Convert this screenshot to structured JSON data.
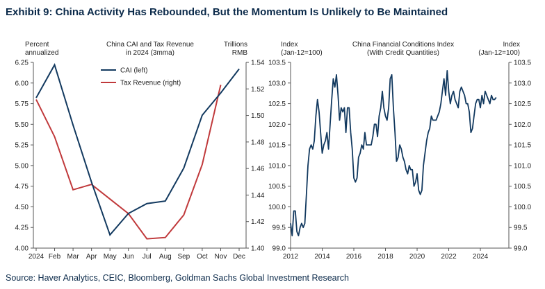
{
  "title": "Exhibit 9: China Activity Has Rebounded, But the Momentum Is Unlikely to Be Maintained",
  "source": "Source: Haver Analytics, CEIC, Bloomberg, Goldman Sachs Global Investment Research",
  "colors": {
    "cai": "#12395f",
    "tax": "#c0393b",
    "fci": "#12395f"
  },
  "chart_data": [
    {
      "type": "line",
      "title": "China CAI and Tax Revenue",
      "subtitle": "in 2024 (3mma)",
      "ylabel_left": [
        "Percent",
        "annualized"
      ],
      "ylabel_right": [
        "Trillions",
        "RMB"
      ],
      "categories": [
        "2024",
        "Feb",
        "Mar",
        "Apr",
        "May",
        "Jun",
        "Jul",
        "Aug",
        "Sep",
        "Oct",
        "Nov",
        "Dec"
      ],
      "ylim_left": [
        4.0,
        6.25
      ],
      "ylim_right": [
        1.4,
        1.54
      ],
      "yticks_left": [
        "4.00",
        "4.25",
        "4.50",
        "4.75",
        "5.00",
        "5.25",
        "5.50",
        "5.75",
        "6.00",
        "6.25"
      ],
      "yticks_right": [
        "1.40",
        "1.42",
        "1.44",
        "1.46",
        "1.48",
        "1.50",
        "1.52",
        "1.54"
      ],
      "legend_position": "top-left",
      "series": [
        {
          "name": "CAI (left)",
          "axis": "left",
          "values": [
            5.82,
            6.22,
            5.49,
            4.8,
            4.16,
            4.42,
            4.54,
            4.57,
            4.97,
            5.61,
            5.88,
            6.17
          ]
        },
        {
          "name": "Tax Revenue (right)",
          "axis": "right",
          "values": [
            1.512,
            1.484,
            1.444,
            1.448,
            1.437,
            1.426,
            1.407,
            1.408,
            1.425,
            1.463,
            1.523,
            null
          ]
        }
      ]
    },
    {
      "type": "line",
      "title": "China Financial Conditions Index",
      "subtitle": "(With Credit Quantities)",
      "ylabel_left": [
        "Index",
        "(Jan-12=100)"
      ],
      "ylabel_right": [
        "Index",
        "(Jan-12=100)"
      ],
      "xticks": [
        "2012",
        "2014",
        "2016",
        "2018",
        "2020",
        "2022",
        "2024"
      ],
      "xlim": [
        2012,
        2025.8
      ],
      "ylim": [
        99.0,
        103.5
      ],
      "yticks": [
        "99.0",
        "99.5",
        "100.0",
        "100.5",
        "101.0",
        "101.5",
        "102.0",
        "102.5",
        "103.0",
        "103.5"
      ],
      "series": [
        {
          "name": "",
          "x": [
            2012.0,
            2012.1,
            2012.2,
            2012.3,
            2012.4,
            2012.5,
            2012.6,
            2012.7,
            2012.8,
            2012.9,
            2013.0,
            2013.1,
            2013.2,
            2013.3,
            2013.4,
            2013.5,
            2013.6,
            2013.7,
            2013.8,
            2013.9,
            2014.0,
            2014.1,
            2014.2,
            2014.3,
            2014.4,
            2014.5,
            2014.6,
            2014.7,
            2014.8,
            2014.9,
            2015.0,
            2015.1,
            2015.2,
            2015.3,
            2015.4,
            2015.5,
            2015.6,
            2015.7,
            2015.8,
            2015.9,
            2016.0,
            2016.1,
            2016.2,
            2016.3,
            2016.4,
            2016.5,
            2016.6,
            2016.7,
            2016.8,
            2016.9,
            2017.0,
            2017.1,
            2017.2,
            2017.3,
            2017.4,
            2017.5,
            2017.6,
            2017.7,
            2017.8,
            2017.9,
            2018.0,
            2018.1,
            2018.2,
            2018.3,
            2018.4,
            2018.5,
            2018.6,
            2018.7,
            2018.8,
            2018.9,
            2019.0,
            2019.1,
            2019.2,
            2019.3,
            2019.4,
            2019.5,
            2019.6,
            2019.7,
            2019.8,
            2019.9,
            2020.0,
            2020.1,
            2020.2,
            2020.3,
            2020.4,
            2020.5,
            2020.6,
            2020.7,
            2020.8,
            2020.9,
            2021.0,
            2021.1,
            2021.2,
            2021.3,
            2021.4,
            2021.5,
            2021.6,
            2021.7,
            2021.8,
            2021.9,
            2022.0,
            2022.1,
            2022.2,
            2022.3,
            2022.4,
            2022.5,
            2022.6,
            2022.7,
            2022.8,
            2022.9,
            2023.0,
            2023.1,
            2023.2,
            2023.3,
            2023.4,
            2023.5,
            2023.6,
            2023.7,
            2023.8,
            2023.9,
            2024.0,
            2024.1,
            2024.2,
            2024.3,
            2024.4,
            2024.5,
            2024.6,
            2024.7,
            2024.8,
            2024.9,
            2025.0
          ],
          "values": [
            99.6,
            99.3,
            99.9,
            99.9,
            99.4,
            99.3,
            99.5,
            99.6,
            99.5,
            99.6,
            100.3,
            101.0,
            101.4,
            101.5,
            101.4,
            101.6,
            102.2,
            102.6,
            102.3,
            101.8,
            101.3,
            101.5,
            101.6,
            101.8,
            101.4,
            102.0,
            102.6,
            103.1,
            102.9,
            103.2,
            102.7,
            102.1,
            102.4,
            102.3,
            102.4,
            101.8,
            102.4,
            102.4,
            101.8,
            101.4,
            100.7,
            100.6,
            100.7,
            101.2,
            101.3,
            101.5,
            101.4,
            101.8,
            101.5,
            101.5,
            101.5,
            101.5,
            101.7,
            102.0,
            102.0,
            101.7,
            102.2,
            102.4,
            102.8,
            102.4,
            102.2,
            102.1,
            102.4,
            103.1,
            103.2,
            102.4,
            101.8,
            101.1,
            101.2,
            101.5,
            101.4,
            101.2,
            101.1,
            100.9,
            100.8,
            101.0,
            100.9,
            100.9,
            100.5,
            100.6,
            100.8,
            100.4,
            100.3,
            100.4,
            101.0,
            101.3,
            101.6,
            101.8,
            101.9,
            102.2,
            102.1,
            102.1,
            102.1,
            102.2,
            102.3,
            102.5,
            102.8,
            103.1,
            102.7,
            103.3,
            102.8,
            102.5,
            102.7,
            102.8,
            102.6,
            102.5,
            102.4,
            102.8,
            102.9,
            102.8,
            102.7,
            102.5,
            102.5,
            102.3,
            101.8,
            101.9,
            102.2,
            102.5,
            102.6,
            102.6,
            102.4,
            102.7,
            102.5,
            102.8,
            102.7,
            102.6,
            102.5,
            102.7,
            102.6,
            102.6,
            102.65
          ]
        }
      ]
    }
  ]
}
